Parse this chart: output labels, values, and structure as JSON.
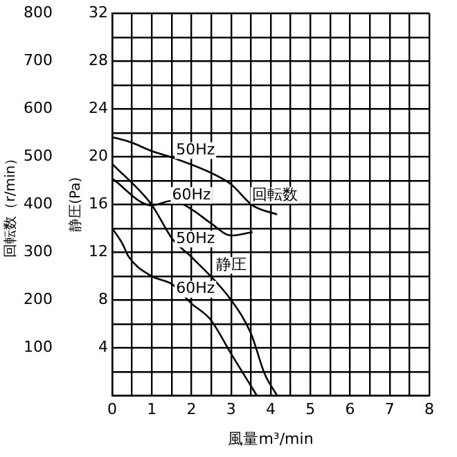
{
  "chart_data": {
    "type": "line",
    "xlabel": "風量m³/min",
    "ylabel": "静圧(Pa)",
    "y2label": "回転数（r/min）",
    "xlim": [
      0,
      8
    ],
    "xticks": [
      0,
      {
        "value": 0.5,
        "label": null
      },
      1,
      {
        "value": 1.5,
        "label": null
      },
      2,
      {
        "value": 2.5,
        "label": null
      },
      3,
      {
        "value": 3.5,
        "label": null
      },
      4,
      {
        "value": 4.5,
        "label": null
      },
      5,
      {
        "value": 5.5,
        "label": null
      },
      6,
      {
        "value": 6.5,
        "label": null
      },
      7,
      {
        "value": 7.5,
        "label": null
      },
      8
    ],
    "ylim": [
      0,
      32
    ],
    "yticks": [
      {
        "value": 0,
        "label": null
      },
      {
        "value": 2,
        "label": null
      },
      4,
      {
        "value": 6,
        "label": null
      },
      8,
      {
        "value": 10,
        "label": null
      },
      12,
      {
        "value": 14,
        "label": null
      },
      16,
      {
        "value": 18,
        "label": null
      },
      20,
      {
        "value": 22,
        "label": null
      },
      24,
      {
        "value": 26,
        "label": null
      },
      28,
      {
        "value": 30,
        "label": null
      },
      32
    ],
    "y2lim": [
      0,
      800
    ],
    "y2ticks": [
      100,
      200,
      300,
      400,
      500,
      600,
      700,
      800
    ],
    "series": [
      {
        "color": "#000000",
        "axis": "y2",
        "x": [
          0,
          0.47,
          0.99,
          1.52,
          2.52,
          3.0,
          3.54,
          4.16
        ],
        "values": [
          541,
          530,
          512,
          498,
          465,
          442,
          398,
          379
        ]
      },
      {
        "color": "#000000",
        "axis": "y2",
        "x": [
          0,
          0.99,
          1.52,
          2.0,
          2.5,
          3.0,
          3.54
        ],
        "values": [
          454,
          398,
          408,
          390,
          360,
          335,
          342
        ]
      },
      {
        "color": "#000000",
        "x": [
          0,
          0.99,
          1.52,
          2.0,
          3.0,
          3.5,
          3.85,
          4.16
        ],
        "values": [
          19.4,
          16.0,
          13.1,
          11.6,
          8.0,
          5.2,
          1.8,
          0
        ]
      },
      {
        "color": "#000000",
        "x": [
          0,
          0.26,
          0.42,
          0.99,
          1.52,
          2.0,
          2.47,
          3.0,
          3.65
        ],
        "values": [
          14.0,
          12.7,
          11.6,
          10.0,
          9.3,
          7.7,
          6.4,
          3.5,
          0
        ]
      }
    ],
    "annotations": [
      {
        "text": "50Hz",
        "x": 2.1,
        "y": 20.5
      },
      {
        "text": "60Hz",
        "x": 2.0,
        "y": 16.75
      },
      {
        "text": "回転数",
        "x": 4.1,
        "y": 16.75
      },
      {
        "text": "50Hz",
        "x": 2.1,
        "y": 13.1
      },
      {
        "text": "静圧",
        "x": 3.0,
        "y": 10.9
      },
      {
        "text": "60Hz",
        "x": 2.1,
        "y": 8.9
      }
    ],
    "grid": true,
    "legend": false,
    "marker": "none",
    "line_style": "solid"
  }
}
